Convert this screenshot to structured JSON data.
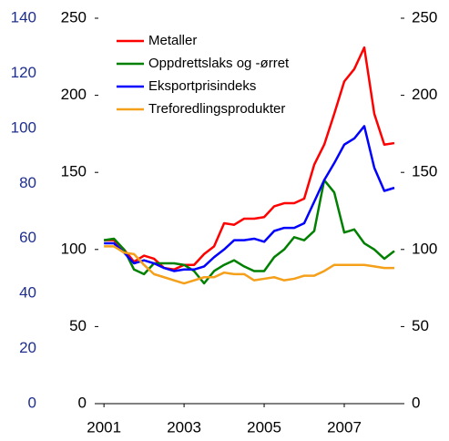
{
  "chart_data": {
    "type": "line",
    "x": [
      2001,
      2001.25,
      2001.5,
      2001.75,
      2002,
      2002.25,
      2002.5,
      2002.75,
      2003,
      2003.25,
      2003.5,
      2003.75,
      2004,
      2004.25,
      2004.5,
      2004.75,
      2005,
      2005.25,
      2005.5,
      2005.75,
      2006,
      2006.25,
      2006.5,
      2006.75,
      2007,
      2007.25,
      2007.5,
      2007.75,
      2008,
      2008.25
    ],
    "xlim": [
      2000.86,
      2008.41
    ],
    "xticks": [
      2001,
      2003,
      2005,
      2007
    ],
    "ylim": [
      0,
      250
    ],
    "yticks": [
      0,
      50,
      100,
      150,
      200,
      250
    ],
    "y2lim": [
      0,
      250
    ],
    "y2ticks": [
      0,
      50,
      100,
      150,
      200,
      250
    ],
    "y3lim": [
      0,
      140
    ],
    "y3ticks": [
      0,
      20,
      40,
      60,
      80,
      100,
      120,
      140
    ],
    "y3color": "#1f2f8f",
    "legend": "upper left",
    "series": [
      {
        "name": "Metaller",
        "color": "#ff0000",
        "values": [
          106,
          106,
          100,
          92,
          96,
          94,
          88,
          87,
          90,
          90,
          97,
          102,
          117,
          116,
          120,
          120,
          121,
          128,
          130,
          130,
          133,
          155,
          168,
          188,
          209,
          217,
          231,
          188,
          168,
          169
        ]
      },
      {
        "name": "Oppdrettslaks og -ørret",
        "color": "#008000",
        "values": [
          106,
          107,
          100,
          87,
          84,
          91,
          91,
          91,
          90,
          86,
          78,
          86,
          90,
          93,
          89,
          86,
          86,
          95,
          100,
          108,
          106,
          112,
          145,
          137,
          111,
          113,
          104,
          100,
          94,
          99
        ]
      },
      {
        "name": "Eksportprisindeks",
        "color": "#0000ff",
        "values": [
          104,
          104,
          98,
          91,
          93,
          91,
          88,
          86,
          87,
          87,
          89,
          95,
          100,
          106,
          106,
          107,
          105,
          112,
          114,
          114,
          117,
          131,
          145,
          156,
          168,
          172,
          180,
          153,
          138,
          140
        ]
      },
      {
        "name": "Treforedlingsprodukter",
        "color": "#f5a01a",
        "values": [
          102,
          102,
          98,
          97,
          90,
          84,
          82,
          80,
          78,
          80,
          82,
          82,
          85,
          84,
          84,
          80,
          81,
          82,
          80,
          81,
          83,
          83,
          86,
          90,
          90,
          90,
          90,
          89,
          88,
          88
        ]
      }
    ]
  }
}
